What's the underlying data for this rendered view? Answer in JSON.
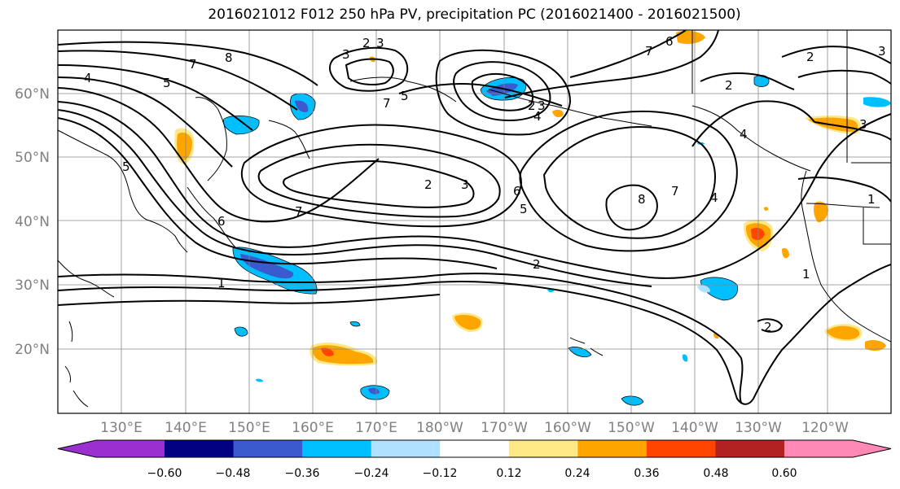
{
  "title": "2016021012 F012 250 hPa PV, precipitation PC (2016021400 - 2016021500)",
  "map": {
    "latitude_labels": [
      "60°N",
      "50°N",
      "40°N",
      "30°N",
      "20°N"
    ],
    "longitude_labels": [
      "130°E",
      "140°E",
      "150°E",
      "160°E",
      "170°E",
      "180°W",
      "170°W",
      "160°W",
      "150°W",
      "140°W",
      "130°W",
      "120°W"
    ],
    "contour_labels": [
      "4",
      "5",
      "7",
      "8",
      "3",
      "2",
      "3",
      "5",
      "2",
      "3",
      "4",
      "6",
      "7",
      "2",
      "3",
      "5",
      "4",
      "3",
      "2",
      "1",
      "7",
      "6",
      "7",
      "3",
      "2",
      "6",
      "5",
      "8",
      "7",
      "4",
      "1",
      "2",
      "2",
      "1"
    ],
    "colors": {
      "purple": "#9b30d0",
      "navy": "#000080",
      "royal_blue": "#3a5acd",
      "sky": "#00bfff",
      "light_sky": "#b0e0ff",
      "white": "#ffffff",
      "light_yellow": "#ffe987",
      "orange": "#ffa500",
      "red_orange": "#ff4500",
      "firebrick": "#b22222",
      "pink": "#ff88b5"
    }
  },
  "colorbar": {
    "tick_labels": [
      "−0.60",
      "−0.48",
      "−0.36",
      "−0.24",
      "−0.12",
      "0.12",
      "0.24",
      "0.36",
      "0.48",
      "0.60"
    ],
    "bin_colors": [
      "#9b30d0",
      "#000080",
      "#3a5acd",
      "#00bfff",
      "#b0e0ff",
      "#ffffff",
      "#ffe987",
      "#ffa500",
      "#ff4500",
      "#b22222",
      "#ff88b5"
    ]
  }
}
